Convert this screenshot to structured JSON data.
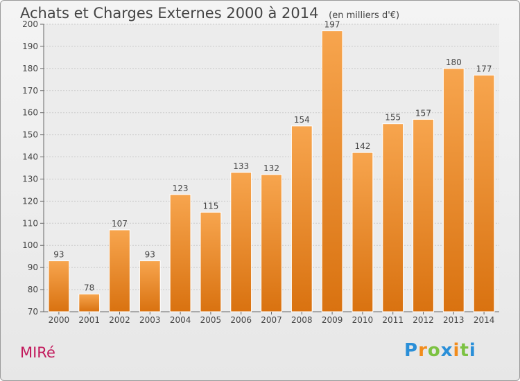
{
  "header": {
    "title": "Achats et Charges Externes 2000 à 2014",
    "unit": "(en milliers d'€)"
  },
  "footer": {
    "commune": "MIRé",
    "brand": "Proxiti"
  },
  "colors": {
    "bar": "#f28c1c",
    "bar_light": "#f7a54e",
    "bar_dark": "#d97210",
    "commune": "#c2185b"
  },
  "chart_data": {
    "type": "bar",
    "title": "Achats et Charges Externes 2000 à 2014",
    "subtitle": "(en milliers d'€)",
    "categories": [
      "2000",
      "2001",
      "2002",
      "2003",
      "2004",
      "2005",
      "2006",
      "2007",
      "2008",
      "2009",
      "2010",
      "2011",
      "2012",
      "2013",
      "2014"
    ],
    "values": [
      93,
      78,
      107,
      93,
      123,
      115,
      133,
      132,
      154,
      197,
      142,
      155,
      157,
      180,
      177
    ],
    "ylim": [
      70,
      200
    ],
    "yticks": [
      70,
      80,
      90,
      100,
      110,
      120,
      130,
      140,
      150,
      160,
      170,
      180,
      190,
      200
    ],
    "grid": true,
    "xlabel": "",
    "ylabel": ""
  }
}
